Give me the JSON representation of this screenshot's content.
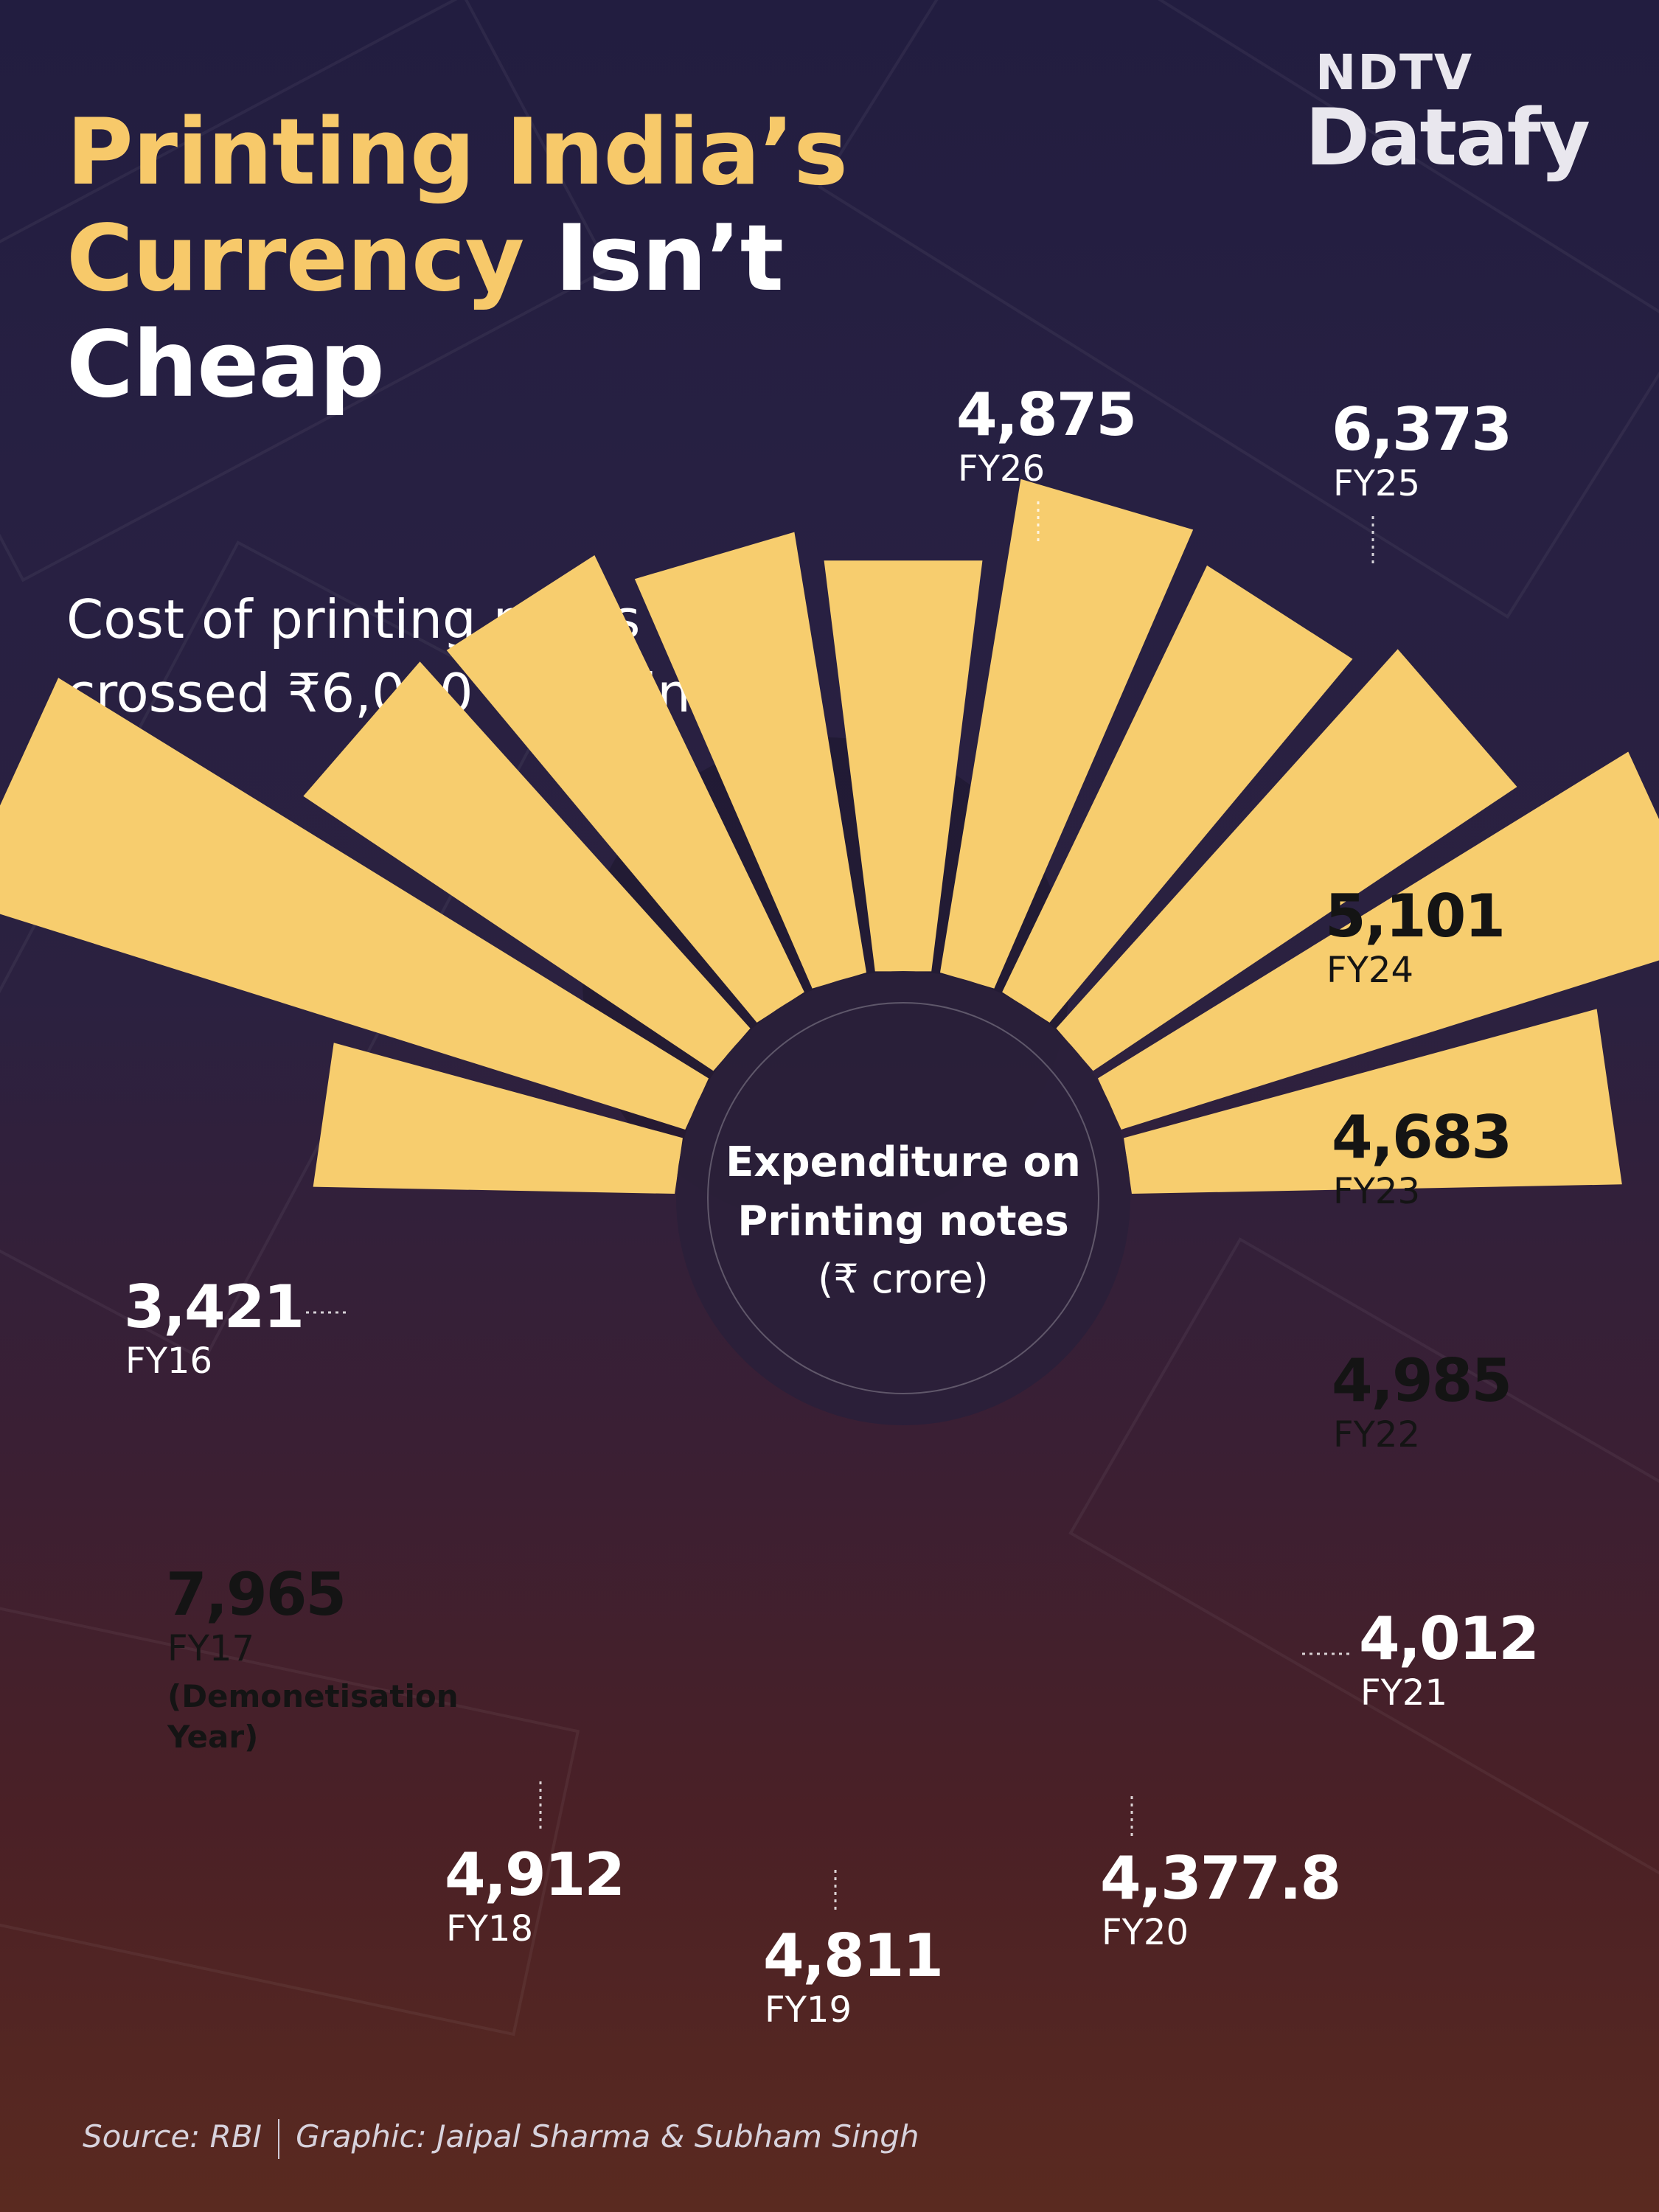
{
  "headline": {
    "line1": "Printing India’s",
    "line2_yellow": "Currency",
    "line2_white": "Isn’t",
    "line3": "Cheap"
  },
  "subtitle": "Cost of printing notes crossed ₹6,000 crore in FY 25",
  "logo": {
    "top": "NDTV",
    "bottom": "Datafy"
  },
  "colors": {
    "bar": "#f7cd6e",
    "title_yellow": "#f7c96a",
    "dark_label": "#141414",
    "light_label": "#ffffff",
    "center_fill": "#2a1f3a"
  },
  "chart_data": {
    "type": "bar",
    "layout": "radial",
    "title": "Expenditure on Printing notes",
    "unit": "(₹ crore)",
    "categories": [
      "FY16",
      "FY17",
      "FY18",
      "FY19",
      "FY20",
      "FY21",
      "FY22",
      "FY23",
      "FY24",
      "FY25",
      "FY26"
    ],
    "value_labels": [
      "3,421",
      "7,965",
      "4,912",
      "4,811",
      "4,377.8",
      "4,012",
      "4,985",
      "4,683",
      "5,101",
      "6,373",
      "4,875"
    ],
    "values": [
      3421,
      7965,
      4912,
      4811,
      4377.8,
      4012,
      4985,
      4683,
      5101,
      6373,
      4875
    ],
    "annotations": [
      {
        "category": "FY17",
        "text": "(Demonetisation Year)"
      }
    ]
  },
  "footer": {
    "source": "Source: RBI",
    "credit": "Graphic: Jaipal Sharma & Subham Singh"
  }
}
